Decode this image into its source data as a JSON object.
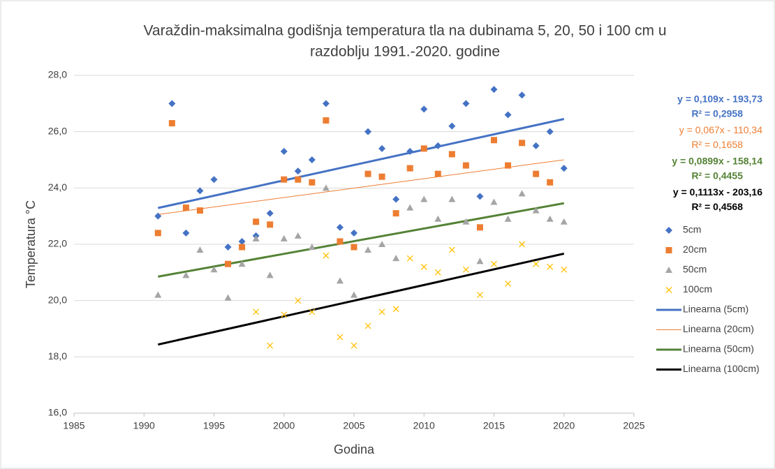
{
  "chart_data": {
    "type": "scatter",
    "title": [
      "Varaždin-maksimalna godišnja temperatura tla na dubinama 5, 20, 50 i 100 cm u",
      "razdoblju 1991.-2020. godine"
    ],
    "xlabel": "Godina",
    "ylabel": "Temperatura °C",
    "x": [
      1991,
      1992,
      1993,
      1994,
      1995,
      1996,
      1997,
      1998,
      1999,
      2000,
      2001,
      2002,
      2003,
      2004,
      2005,
      2006,
      2007,
      2008,
      2009,
      2010,
      2011,
      2012,
      2013,
      2014,
      2015,
      2016,
      2017,
      2018,
      2019,
      2020
    ],
    "series": [
      {
        "name": "5cm",
        "color": "#4472c4",
        "marker": "diamond",
        "values": [
          23.0,
          27.0,
          22.4,
          23.9,
          24.3,
          21.9,
          22.1,
          22.3,
          23.1,
          25.3,
          24.6,
          25.0,
          27.0,
          22.6,
          22.4,
          26.0,
          25.4,
          23.6,
          25.3,
          26.8,
          25.5,
          26.2,
          27.0,
          23.7,
          27.5,
          26.6,
          27.3,
          25.5,
          26.0,
          24.7
        ]
      },
      {
        "name": "20cm",
        "color": "#ed7d31",
        "marker": "square",
        "values": [
          22.4,
          26.3,
          23.3,
          23.2,
          null,
          21.3,
          21.9,
          22.8,
          22.7,
          24.3,
          24.3,
          24.2,
          26.4,
          22.1,
          21.9,
          24.5,
          24.4,
          23.1,
          24.7,
          25.4,
          24.5,
          25.2,
          24.8,
          22.6,
          25.7,
          24.8,
          25.6,
          24.5,
          24.2,
          null
        ]
      },
      {
        "name": "50cm",
        "color": "#a5a5a5",
        "marker": "triangle",
        "values": [
          20.2,
          null,
          20.9,
          21.8,
          21.1,
          20.1,
          21.3,
          22.2,
          20.9,
          22.2,
          22.3,
          21.9,
          24.0,
          20.7,
          20.2,
          21.8,
          22.0,
          21.5,
          23.3,
          23.6,
          22.9,
          23.6,
          22.8,
          21.4,
          23.5,
          22.9,
          23.8,
          23.2,
          22.9,
          22.8
        ]
      },
      {
        "name": "100cm",
        "color": "#ffc000",
        "marker": "x",
        "values": [
          null,
          null,
          null,
          null,
          null,
          null,
          null,
          19.6,
          18.4,
          19.5,
          20.0,
          19.6,
          21.6,
          18.7,
          18.4,
          19.1,
          19.6,
          19.7,
          21.5,
          21.2,
          21.0,
          21.8,
          21.1,
          20.2,
          21.3,
          20.6,
          22.0,
          21.3,
          21.2,
          21.1
        ]
      }
    ],
    "trendlines": [
      {
        "name": "Linearna (5cm)",
        "color": "#4472c4",
        "width": 3,
        "bold": true,
        "slope": 0.109,
        "intercept": -193.73,
        "equation": "y = 0,109x - 193,73",
        "r2": "R² = 0,2958"
      },
      {
        "name": "Linearna (20cm)",
        "color": "#ed7d31",
        "width": 1,
        "bold": false,
        "slope": 0.067,
        "intercept": -110.34,
        "equation": "y = 0,067x - 110,34",
        "r2": "R² = 0,1658"
      },
      {
        "name": "Linearna (50cm)",
        "color": "#548235",
        "width": 3,
        "bold": true,
        "slope": 0.0899,
        "intercept": -158.14,
        "equation": "y = 0,0899x - 158,14",
        "r2": "R² = 0,4455"
      },
      {
        "name": "Linearna (100cm)",
        "color": "#000000",
        "width": 3,
        "bold": true,
        "slope": 0.1113,
        "intercept": -203.16,
        "equation": "y = 0,1113x - 203,16",
        "r2": "R² = 0,4568"
      }
    ],
    "xlim": [
      1985,
      2025
    ],
    "xticks": [
      1985,
      1990,
      1995,
      2000,
      2005,
      2010,
      2015,
      2020,
      2025
    ],
    "ylim": [
      16,
      28
    ],
    "yticks": [
      {
        "value": 16,
        "label": "16,0"
      },
      {
        "value": 18,
        "label": "18,0"
      },
      {
        "value": 20,
        "label": "20,0"
      },
      {
        "value": 22,
        "label": "22,0"
      },
      {
        "value": 24,
        "label": "24,0"
      },
      {
        "value": 26,
        "label": "26,0"
      },
      {
        "value": 28,
        "label": "28,0"
      }
    ],
    "grid": true,
    "legend": "right"
  }
}
